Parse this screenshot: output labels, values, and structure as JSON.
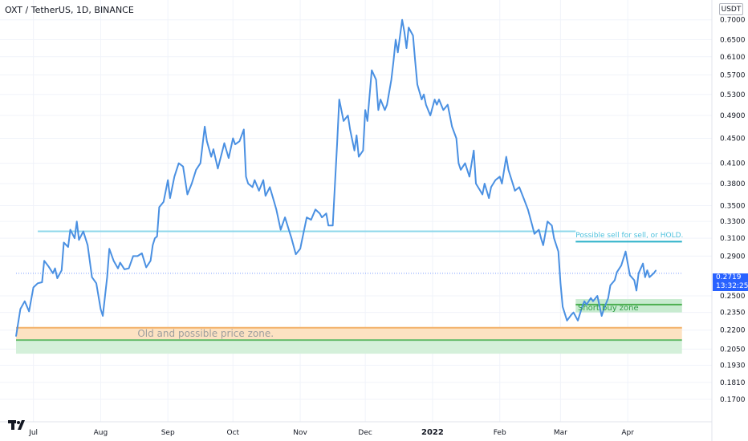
{
  "header": {
    "symbol_title": "OXT / TetherUS, 1D, BINANCE",
    "currency": "USDT"
  },
  "price_tag": {
    "price": "0.2719",
    "countdown": "13:32:25",
    "color": "#2962ff"
  },
  "logo": {
    "icon": "tradingview-logo-icon"
  },
  "chart_data": {
    "type": "line",
    "title": "OXT / TetherUS, 1D, BINANCE",
    "y_scale": "log",
    "ylim": [
      0.163,
      0.71
    ],
    "y_ticks": [
      "0.7000",
      "0.6500",
      "0.6100",
      "0.5700",
      "0.5300",
      "0.4900",
      "0.4500",
      "0.4100",
      "0.3800",
      "0.3500",
      "0.3300",
      "0.3100",
      "0.2900",
      "0.2500",
      "0.2350",
      "0.2200",
      "0.2050",
      "0.1930",
      "0.1810",
      "0.1700"
    ],
    "x_ticks": [
      {
        "label": "Jul",
        "date": "2021-07-01"
      },
      {
        "label": "Aug",
        "date": "2021-08-01"
      },
      {
        "label": "Sep",
        "date": "2021-09-01"
      },
      {
        "label": "Oct",
        "date": "2021-10-01"
      },
      {
        "label": "Nov",
        "date": "2021-11-01"
      },
      {
        "label": "Dec",
        "date": "2021-12-01"
      },
      {
        "label": "2022",
        "date": "2022-01-01"
      },
      {
        "label": "Feb",
        "date": "2022-02-01"
      },
      {
        "label": "Mar",
        "date": "2022-03-01"
      },
      {
        "label": "Apr",
        "date": "2022-04-01"
      }
    ],
    "xlim": [
      "2021-06-23",
      "2022-04-15"
    ],
    "grid": true,
    "line_color": "#4a90e2",
    "series": [
      {
        "points": [
          [
            "2021-06-23",
            0.215
          ],
          [
            "2021-06-25",
            0.238
          ],
          [
            "2021-06-27",
            0.245
          ],
          [
            "2021-06-29",
            0.236
          ],
          [
            "2021-07-01",
            0.258
          ],
          [
            "2021-07-03",
            0.262
          ],
          [
            "2021-07-05",
            0.263
          ],
          [
            "2021-07-06",
            0.285
          ],
          [
            "2021-07-08",
            0.279
          ],
          [
            "2021-07-10",
            0.272
          ],
          [
            "2021-07-11",
            0.277
          ],
          [
            "2021-07-12",
            0.267
          ],
          [
            "2021-07-14",
            0.275
          ],
          [
            "2021-07-15",
            0.305
          ],
          [
            "2021-07-17",
            0.3
          ],
          [
            "2021-07-18",
            0.32
          ],
          [
            "2021-07-20",
            0.31
          ],
          [
            "2021-07-21",
            0.33
          ],
          [
            "2021-07-22",
            0.308
          ],
          [
            "2021-07-24",
            0.318
          ],
          [
            "2021-07-26",
            0.302
          ],
          [
            "2021-07-28",
            0.268
          ],
          [
            "2021-07-30",
            0.262
          ],
          [
            "2021-08-01",
            0.238
          ],
          [
            "2021-08-02",
            0.232
          ],
          [
            "2021-08-04",
            0.268
          ],
          [
            "2021-08-05",
            0.298
          ],
          [
            "2021-08-07",
            0.285
          ],
          [
            "2021-08-09",
            0.277
          ],
          [
            "2021-08-10",
            0.283
          ],
          [
            "2021-08-12",
            0.276
          ],
          [
            "2021-08-14",
            0.277
          ],
          [
            "2021-08-16",
            0.29
          ],
          [
            "2021-08-18",
            0.29
          ],
          [
            "2021-08-20",
            0.293
          ],
          [
            "2021-08-22",
            0.278
          ],
          [
            "2021-08-24",
            0.285
          ],
          [
            "2021-08-25",
            0.302
          ],
          [
            "2021-08-26",
            0.31
          ],
          [
            "2021-08-27",
            0.312
          ],
          [
            "2021-08-28",
            0.348
          ],
          [
            "2021-08-30",
            0.355
          ],
          [
            "2021-09-01",
            0.385
          ],
          [
            "2021-09-02",
            0.36
          ],
          [
            "2021-09-04",
            0.39
          ],
          [
            "2021-09-06",
            0.41
          ],
          [
            "2021-09-08",
            0.405
          ],
          [
            "2021-09-10",
            0.365
          ],
          [
            "2021-09-12",
            0.38
          ],
          [
            "2021-09-14",
            0.4
          ],
          [
            "2021-09-16",
            0.41
          ],
          [
            "2021-09-18",
            0.47
          ],
          [
            "2021-09-19",
            0.445
          ],
          [
            "2021-09-21",
            0.42
          ],
          [
            "2021-09-22",
            0.432
          ],
          [
            "2021-09-24",
            0.402
          ],
          [
            "2021-09-26",
            0.428
          ],
          [
            "2021-09-27",
            0.442
          ],
          [
            "2021-09-29",
            0.418
          ],
          [
            "2021-10-01",
            0.45
          ],
          [
            "2021-10-02",
            0.44
          ],
          [
            "2021-10-04",
            0.445
          ],
          [
            "2021-10-06",
            0.465
          ],
          [
            "2021-10-07",
            0.39
          ],
          [
            "2021-10-08",
            0.38
          ],
          [
            "2021-10-10",
            0.375
          ],
          [
            "2021-10-11",
            0.385
          ],
          [
            "2021-10-13",
            0.37
          ],
          [
            "2021-10-15",
            0.385
          ],
          [
            "2021-10-16",
            0.363
          ],
          [
            "2021-10-18",
            0.375
          ],
          [
            "2021-10-20",
            0.355
          ],
          [
            "2021-10-21",
            0.345
          ],
          [
            "2021-10-23",
            0.32
          ],
          [
            "2021-10-25",
            0.335
          ],
          [
            "2021-10-27",
            0.318
          ],
          [
            "2021-10-28",
            0.31
          ],
          [
            "2021-10-30",
            0.292
          ],
          [
            "2021-11-01",
            0.298
          ],
          [
            "2021-11-02",
            0.31
          ],
          [
            "2021-11-04",
            0.335
          ],
          [
            "2021-11-06",
            0.332
          ],
          [
            "2021-11-08",
            0.345
          ],
          [
            "2021-11-10",
            0.34
          ],
          [
            "2021-11-11",
            0.335
          ],
          [
            "2021-11-13",
            0.34
          ],
          [
            "2021-11-14",
            0.325
          ],
          [
            "2021-11-16",
            0.325
          ],
          [
            "2021-11-18",
            0.44
          ],
          [
            "2021-11-19",
            0.52
          ],
          [
            "2021-11-21",
            0.48
          ],
          [
            "2021-11-23",
            0.49
          ],
          [
            "2021-11-24",
            0.465
          ],
          [
            "2021-11-26",
            0.43
          ],
          [
            "2021-11-27",
            0.455
          ],
          [
            "2021-11-28",
            0.42
          ],
          [
            "2021-11-30",
            0.43
          ],
          [
            "2021-12-01",
            0.5
          ],
          [
            "2021-12-02",
            0.48
          ],
          [
            "2021-12-04",
            0.58
          ],
          [
            "2021-12-06",
            0.56
          ],
          [
            "2021-12-07",
            0.5
          ],
          [
            "2021-12-08",
            0.52
          ],
          [
            "2021-12-10",
            0.5
          ],
          [
            "2021-12-11",
            0.51
          ],
          [
            "2021-12-13",
            0.56
          ],
          [
            "2021-12-14",
            0.6
          ],
          [
            "2021-12-15",
            0.65
          ],
          [
            "2021-12-16",
            0.62
          ],
          [
            "2021-12-18",
            0.7
          ],
          [
            "2021-12-19",
            0.67
          ],
          [
            "2021-12-20",
            0.63
          ],
          [
            "2021-12-21",
            0.68
          ],
          [
            "2021-12-23",
            0.66
          ],
          [
            "2021-12-24",
            0.6
          ],
          [
            "2021-12-25",
            0.55
          ],
          [
            "2021-12-27",
            0.52
          ],
          [
            "2021-12-28",
            0.53
          ],
          [
            "2021-12-29",
            0.51
          ],
          [
            "2021-12-31",
            0.49
          ],
          [
            "2022-01-02",
            0.52
          ],
          [
            "2022-01-03",
            0.51
          ],
          [
            "2022-01-04",
            0.52
          ],
          [
            "2022-01-06",
            0.5
          ],
          [
            "2022-01-08",
            0.51
          ],
          [
            "2022-01-09",
            0.49
          ],
          [
            "2022-01-10",
            0.47
          ],
          [
            "2022-01-12",
            0.45
          ],
          [
            "2022-01-13",
            0.41
          ],
          [
            "2022-01-14",
            0.4
          ],
          [
            "2022-01-16",
            0.41
          ],
          [
            "2022-01-18",
            0.39
          ],
          [
            "2022-01-20",
            0.43
          ],
          [
            "2022-01-21",
            0.38
          ],
          [
            "2022-01-23",
            0.37
          ],
          [
            "2022-01-24",
            0.365
          ],
          [
            "2022-01-25",
            0.38
          ],
          [
            "2022-01-27",
            0.36
          ],
          [
            "2022-01-28",
            0.375
          ],
          [
            "2022-01-30",
            0.385
          ],
          [
            "2022-02-01",
            0.39
          ],
          [
            "2022-02-02",
            0.38
          ],
          [
            "2022-02-04",
            0.42
          ],
          [
            "2022-02-05",
            0.4
          ],
          [
            "2022-02-07",
            0.38
          ],
          [
            "2022-02-08",
            0.37
          ],
          [
            "2022-02-10",
            0.375
          ],
          [
            "2022-02-12",
            0.36
          ],
          [
            "2022-02-14",
            0.345
          ],
          [
            "2022-02-16",
            0.325
          ],
          [
            "2022-02-17",
            0.315
          ],
          [
            "2022-02-19",
            0.32
          ],
          [
            "2022-02-20",
            0.31
          ],
          [
            "2022-02-21",
            0.302
          ],
          [
            "2022-02-23",
            0.33
          ],
          [
            "2022-02-25",
            0.325
          ],
          [
            "2022-02-26",
            0.31
          ],
          [
            "2022-02-28",
            0.295
          ],
          [
            "2022-03-01",
            0.262
          ],
          [
            "2022-03-02",
            0.24
          ],
          [
            "2022-03-04",
            0.228
          ],
          [
            "2022-03-06",
            0.233
          ],
          [
            "2022-03-07",
            0.235
          ],
          [
            "2022-03-09",
            0.228
          ],
          [
            "2022-03-11",
            0.24
          ],
          [
            "2022-03-12",
            0.245
          ],
          [
            "2022-03-13",
            0.242
          ],
          [
            "2022-03-15",
            0.248
          ],
          [
            "2022-03-16",
            0.245
          ],
          [
            "2022-03-18",
            0.25
          ],
          [
            "2022-03-20",
            0.232
          ],
          [
            "2022-03-21",
            0.238
          ],
          [
            "2022-03-23",
            0.248
          ],
          [
            "2022-03-24",
            0.26
          ],
          [
            "2022-03-26",
            0.265
          ],
          [
            "2022-03-27",
            0.273
          ],
          [
            "2022-03-29",
            0.28
          ],
          [
            "2022-03-31",
            0.295
          ],
          [
            "2022-04-01",
            0.282
          ],
          [
            "2022-04-02",
            0.27
          ],
          [
            "2022-04-04",
            0.265
          ],
          [
            "2022-04-05",
            0.255
          ],
          [
            "2022-04-06",
            0.272
          ],
          [
            "2022-04-08",
            0.282
          ],
          [
            "2022-04-09",
            0.268
          ],
          [
            "2022-04-10",
            0.275
          ],
          [
            "2022-04-11",
            0.268
          ],
          [
            "2022-04-13",
            0.272
          ],
          [
            "2022-04-14",
            0.275
          ]
        ]
      }
    ],
    "annotations": [
      {
        "kind": "hline",
        "value": 0.318,
        "from": "2021-07-03",
        "to": "2022-03-08",
        "color": "#8fd8eb"
      },
      {
        "kind": "label",
        "text": "Possible sell for sell, or HOLD.",
        "value": 0.311,
        "at": "2022-03-08",
        "color": "#4fc1dd"
      },
      {
        "kind": "hline",
        "value": 0.306,
        "from": "2022-03-08",
        "to": "2022-04-26",
        "color": "#2ab1c9"
      },
      {
        "kind": "zone",
        "from_value": 0.247,
        "to_value": 0.235,
        "from": "2022-03-08",
        "to": "2022-04-26",
        "color": "#c8ebd0"
      },
      {
        "kind": "hline",
        "value": 0.242,
        "from": "2022-03-08",
        "to": "2022-04-26",
        "color": "#4caf50"
      },
      {
        "kind": "label",
        "text": "Short buy zone",
        "value": 0.237,
        "at": "2022-03-09",
        "color": "#2e9e44"
      },
      {
        "kind": "zone",
        "from_value": 0.222,
        "to_value": 0.2125,
        "from": "2021-06-23",
        "to": "2022-04-26",
        "color": "#fde2c2"
      },
      {
        "kind": "hline",
        "value": 0.222,
        "from": "2021-06-23",
        "to": "2022-04-26",
        "color": "#f3b169"
      },
      {
        "kind": "zone",
        "from_value": 0.2115,
        "to_value": 0.2015,
        "from": "2021-06-23",
        "to": "2022-04-26",
        "color": "#d4f0da"
      },
      {
        "kind": "hline",
        "value": 0.212,
        "from": "2021-06-23",
        "to": "2022-04-26",
        "color": "#66bb6a"
      },
      {
        "kind": "label",
        "text": "Old and possible price zone.",
        "value": 0.2145,
        "at": "2021-08-18",
        "color": "#9e9e9e"
      },
      {
        "kind": "hline",
        "value": 0.2719,
        "from": "2021-06-23",
        "to": "2022-04-26",
        "color": "#7b9cff",
        "dashed": true
      }
    ]
  }
}
